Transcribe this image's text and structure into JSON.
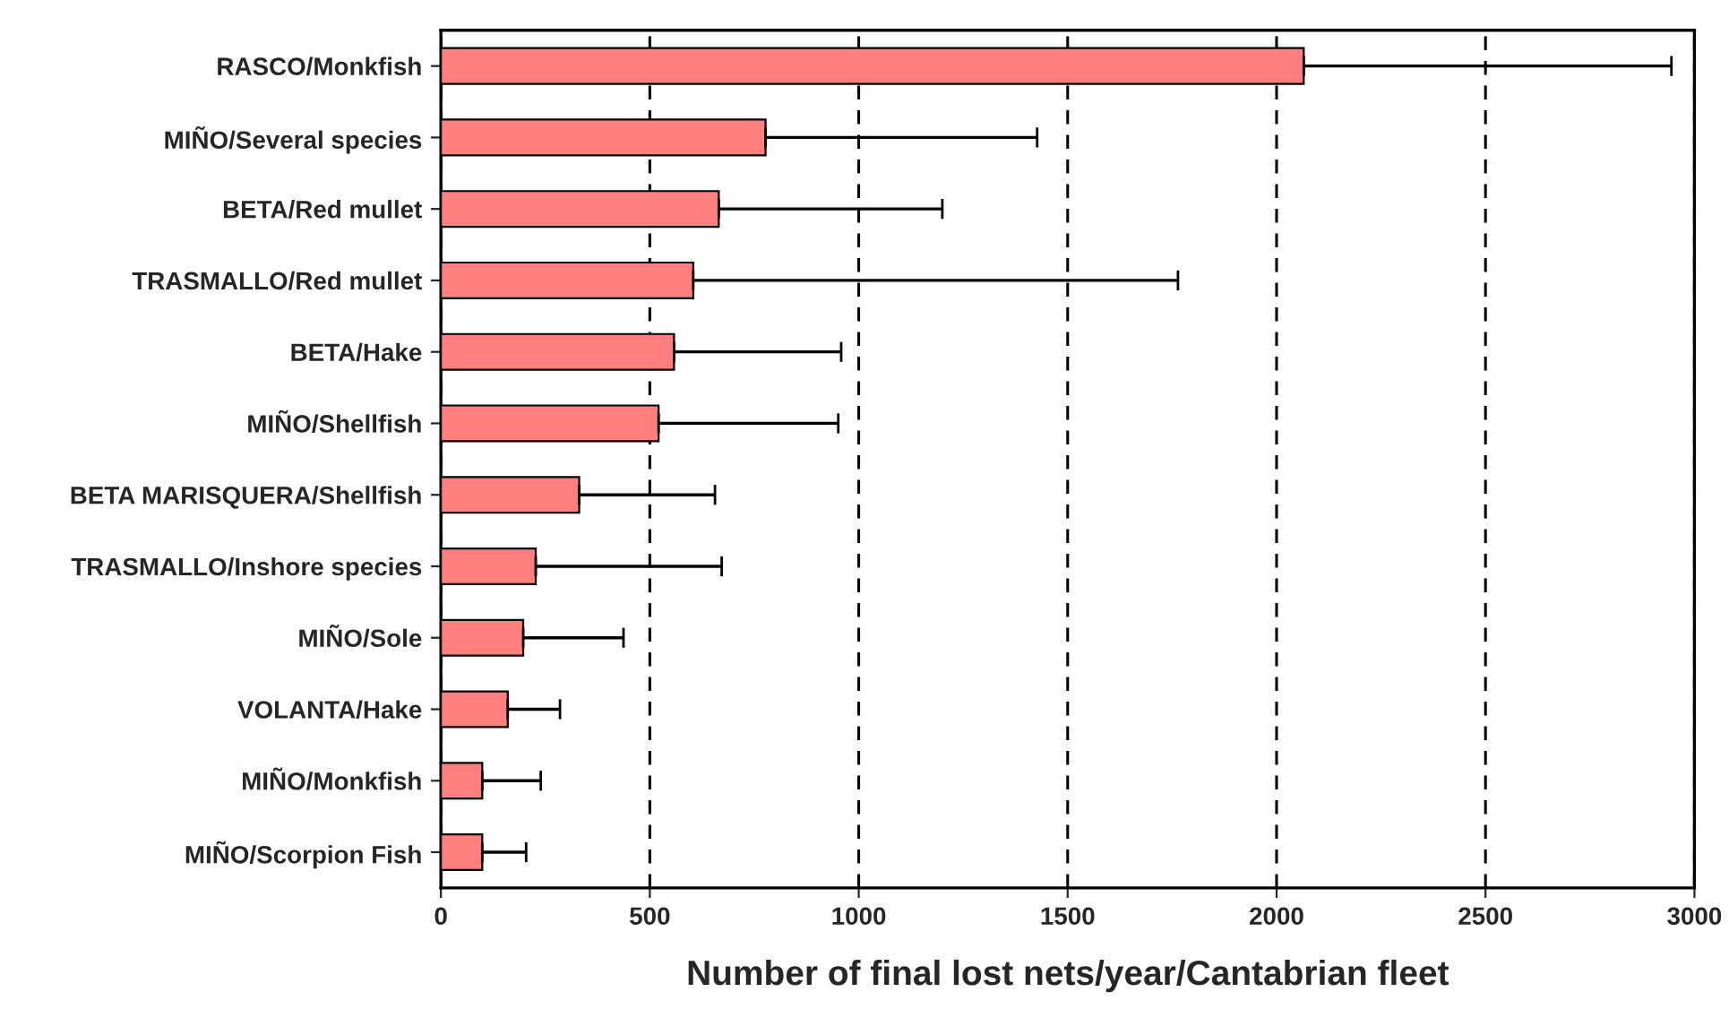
{
  "chart_data": {
    "type": "bar",
    "orientation": "horizontal",
    "xlabel": "Number of final lost nets/year/Cantabrian fleet",
    "categories": [
      "RASCO/Monkfish",
      "MIÑO/Several species",
      "BETA/Red mullet",
      "TRASMALLO/Red mullet",
      "BETA/Hake",
      "MIÑO/Shellfish",
      "BETA MARISQUERA/Shellfish",
      "TRASMALLO/Inshore species",
      "MIÑO/Sole",
      "VOLANTA/Hake",
      "MIÑO/Monkfish",
      "MIÑO/Scorpion Fish"
    ],
    "values": [
      2065,
      777,
      665,
      604,
      558,
      521,
      331,
      227,
      197,
      160,
      99,
      99
    ],
    "errors": [
      [
        2065,
        2945
      ],
      [
        777,
        1427
      ],
      [
        665,
        1200
      ],
      [
        604,
        1764
      ],
      [
        558,
        958
      ],
      [
        521,
        951
      ],
      [
        331,
        656
      ],
      [
        227,
        672
      ],
      [
        197,
        437
      ],
      [
        160,
        285
      ],
      [
        99,
        239
      ],
      [
        99,
        204
      ]
    ],
    "color": "#ff7f7f",
    "xlim": [
      0,
      3000
    ],
    "xticks": [
      0,
      500,
      1000,
      1500,
      2000,
      2500,
      3000
    ],
    "grid": "x",
    "line_style": "dashed"
  }
}
